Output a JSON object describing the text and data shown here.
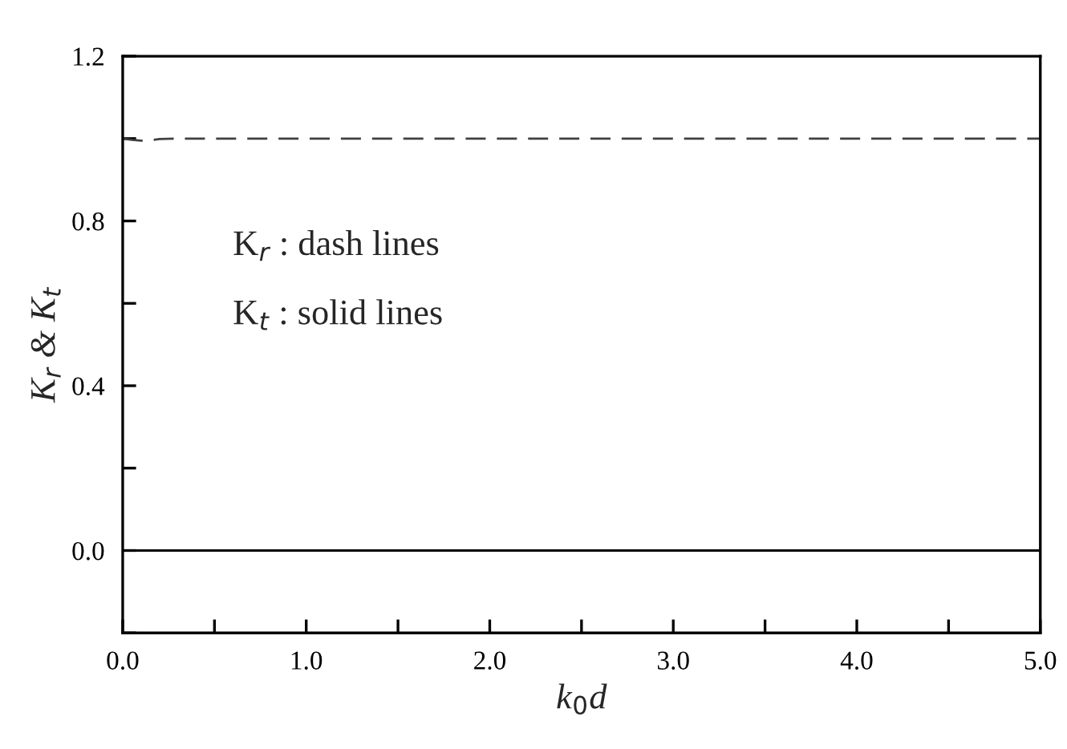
{
  "chart_data": {
    "type": "line",
    "xlabel": "k$_{0}$d",
    "ylabel": "K$_{r}$ & K$_{t}$",
    "xlim": [
      0,
      5
    ],
    "ylim": [
      -0.2,
      1.2
    ],
    "xticks": [
      {
        "value": 0,
        "label": "0.0"
      },
      {
        "value": 0.5,
        "label": null
      },
      {
        "value": 1,
        "label": "1.0"
      },
      {
        "value": 1.5,
        "label": null
      },
      {
        "value": 2,
        "label": "2.0"
      },
      {
        "value": 2.5,
        "label": null
      },
      {
        "value": 3,
        "label": "3.0"
      },
      {
        "value": 3.5,
        "label": null
      },
      {
        "value": 4,
        "label": "4.0"
      },
      {
        "value": 4.5,
        "label": null
      },
      {
        "value": 5,
        "label": "5.0"
      }
    ],
    "yticks": [
      {
        "value": -0.2,
        "label": null
      },
      {
        "value": 0,
        "label": "0.0"
      },
      {
        "value": 0.2,
        "label": null
      },
      {
        "value": 0.4,
        "label": "0.4"
      },
      {
        "value": 0.6,
        "label": null
      },
      {
        "value": 0.8,
        "label": "0.8"
      },
      {
        "value": 1.0,
        "label": null
      },
      {
        "value": 1.2,
        "label": "1.2"
      }
    ],
    "grid": false,
    "legend": false,
    "series": [
      {
        "color": "#404040",
        "line_style": "dashed",
        "x": [
          0,
          0.05,
          0.1,
          0.15,
          0.2,
          0.3,
          0.5,
          1,
          2,
          3,
          4,
          5
        ],
        "values": [
          1.0,
          0.997,
          0.995,
          0.996,
          0.999,
          1.0,
          1.0,
          1.0,
          1.0,
          1.0,
          1.0,
          1.0
        ]
      },
      {
        "color": "#000000",
        "line_style": "solid",
        "x": [
          0,
          1,
          2,
          3,
          4,
          5
        ],
        "values": [
          0,
          0,
          0,
          0,
          0,
          0
        ]
      }
    ],
    "annotations": [
      "K$_{r}$ : dash lines",
      "K$_{t}$ : solid lines"
    ]
  }
}
